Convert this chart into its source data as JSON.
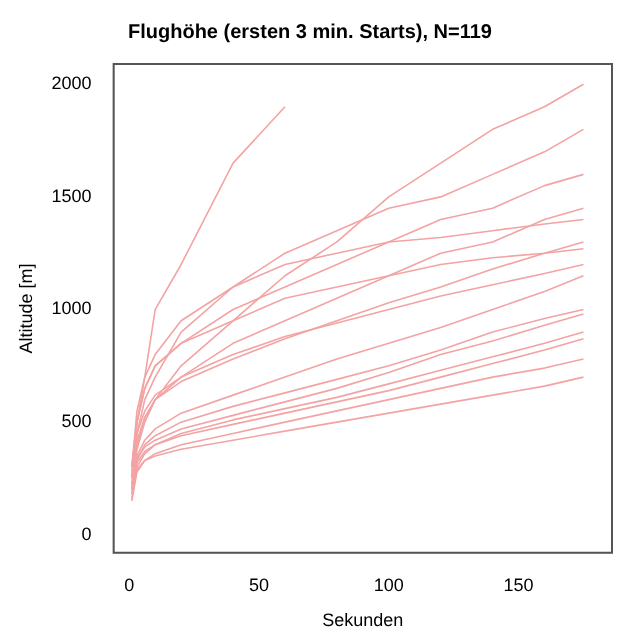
{
  "chart_data": {
    "type": "line",
    "title": "Flughöhe (ersten 3 min. Starts), N=119",
    "xlabel": "Sekunden",
    "ylabel": "Altitude [m]",
    "x": [
      1,
      3,
      6,
      10,
      20,
      40,
      60,
      80,
      100,
      120,
      140,
      160,
      175
    ],
    "xlim": [
      -6,
      186
    ],
    "xticks": [
      0,
      50,
      100,
      150
    ],
    "ylim": [
      -80,
      2090
    ],
    "yticks": [
      0,
      500,
      1000,
      1500,
      2000
    ],
    "grid": false,
    "legend": false,
    "marker": "none",
    "line_style": "solid",
    "series": [
      {
        "color": "#f3a3a3",
        "values": [
          300,
          500,
          700,
          1000,
          1200,
          1650,
          1900,
          null,
          null,
          null,
          null,
          null,
          null
        ]
      },
      {
        "color": "#f3a3a3",
        "values": [
          200,
          400,
          520,
          600,
          750,
          950,
          1150,
          1300,
          1500,
          1650,
          1800,
          1900,
          2000
        ]
      },
      {
        "color": "#f3a3a3",
        "values": [
          250,
          450,
          600,
          700,
          900,
          1100,
          1250,
          1350,
          1450,
          1500,
          1600,
          1700,
          1800
        ]
      },
      {
        "color": "#f3a3a3",
        "values": [
          300,
          500,
          650,
          750,
          850,
          1000,
          1100,
          1200,
          1300,
          1400,
          1450,
          1550,
          1600
        ]
      },
      {
        "color": "#f3a3a3",
        "values": [
          220,
          380,
          500,
          600,
          700,
          850,
          950,
          1050,
          1150,
          1250,
          1300,
          1400,
          1450
        ]
      },
      {
        "color": "#f3a3a3",
        "values": [
          260,
          420,
          520,
          600,
          680,
          780,
          870,
          950,
          1030,
          1100,
          1180,
          1250,
          1300
        ]
      },
      {
        "color": "#f3a3a3",
        "values": [
          200,
          350,
          420,
          470,
          540,
          620,
          700,
          780,
          850,
          920,
          1000,
          1080,
          1150
        ]
      },
      {
        "color": "#f3a3a3",
        "values": [
          180,
          330,
          400,
          440,
          500,
          570,
          630,
          690,
          750,
          820,
          900,
          960,
          1000
        ]
      },
      {
        "color": "#f3a3a3",
        "values": [
          230,
          340,
          390,
          420,
          470,
          530,
          590,
          650,
          720,
          800,
          860,
          930,
          980
        ]
      },
      {
        "color": "#f3a3a3",
        "values": [
          160,
          300,
          360,
          400,
          450,
          510,
          560,
          610,
          670,
          730,
          790,
          850,
          900
        ]
      },
      {
        "color": "#f3a3a3",
        "values": [
          200,
          320,
          370,
          400,
          440,
          490,
          540,
          590,
          640,
          700,
          760,
          820,
          870
        ]
      },
      {
        "color": "#f3a3a3",
        "values": [
          150,
          280,
          330,
          360,
          400,
          450,
          500,
          550,
          600,
          650,
          700,
          740,
          780
        ]
      },
      {
        "color": "#f3a3a3",
        "values": [
          180,
          290,
          330,
          350,
          380,
          420,
          460,
          500,
          540,
          580,
          620,
          660,
          700
        ]
      },
      {
        "color": "#f3a3a3",
        "values": [
          300,
          550,
          700,
          800,
          950,
          1100,
          1200,
          1250,
          1300,
          1320,
          1350,
          1380,
          1400
        ]
      },
      {
        "color": "#f3a3a3",
        "values": [
          250,
          500,
          650,
          750,
          850,
          950,
          1050,
          1100,
          1150,
          1200,
          1230,
          1250,
          1270
        ]
      },
      {
        "color": "#f3a3a3",
        "values": [
          280,
          450,
          550,
          620,
          700,
          800,
          880,
          940,
          1000,
          1060,
          1110,
          1160,
          1200
        ]
      }
    ]
  }
}
